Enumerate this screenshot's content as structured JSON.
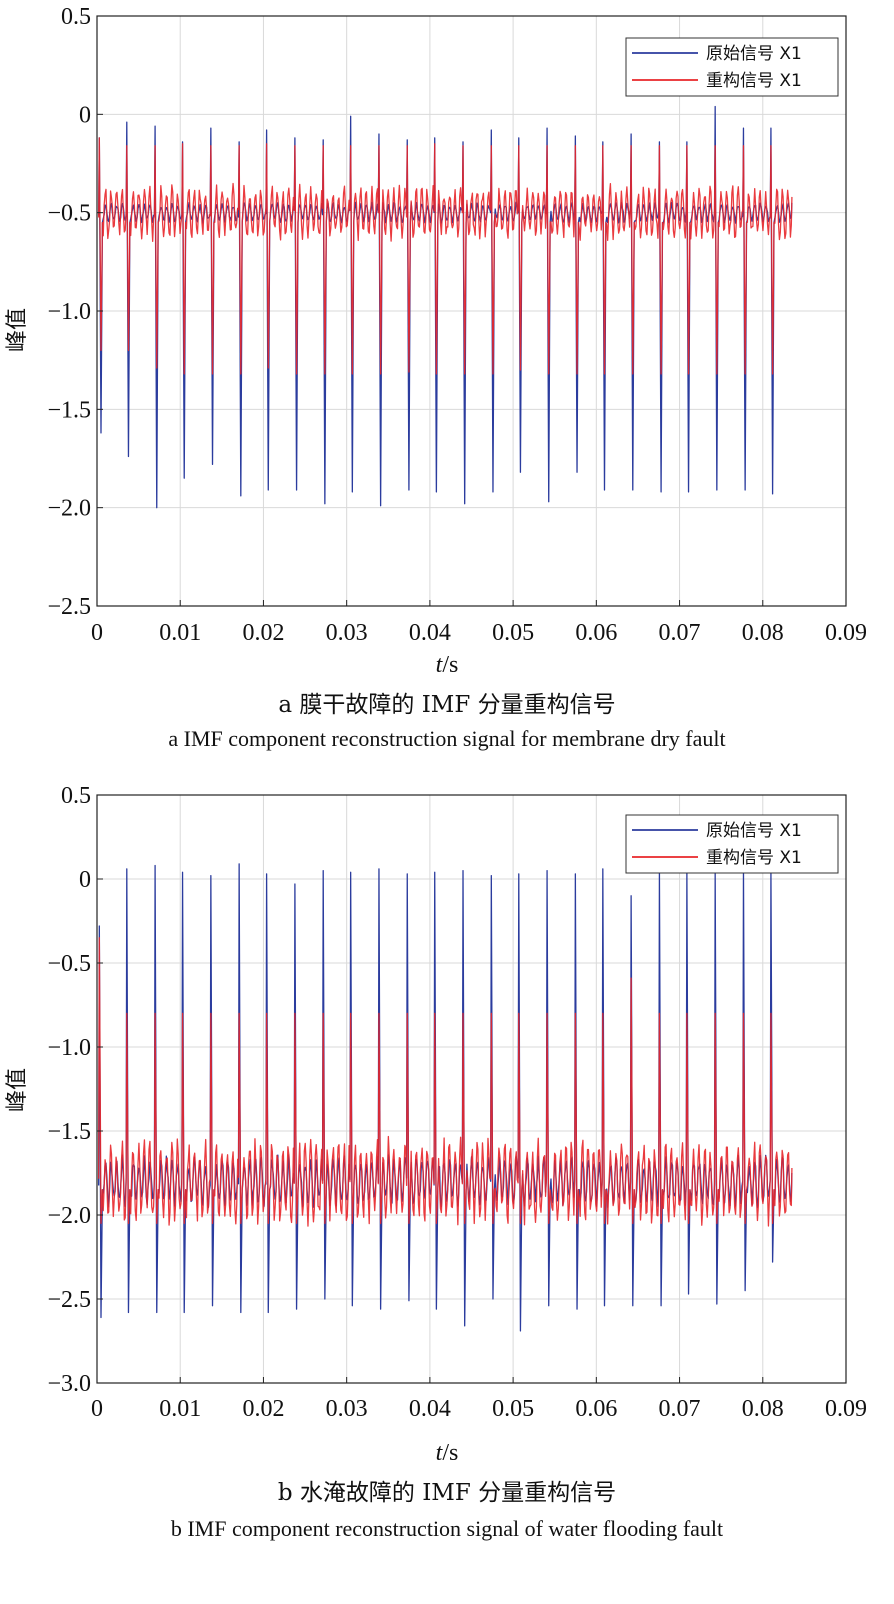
{
  "chart_data": [
    {
      "type": "line",
      "panel_id": "a",
      "xlabel_italic": "t",
      "xlabel_unit": "/s",
      "ylabel": "峰值",
      "xlim": [
        0,
        0.09
      ],
      "ylim": [
        -2.5,
        0.5
      ],
      "xticks": [
        0,
        0.01,
        0.02,
        0.03,
        0.04,
        0.05,
        0.06,
        0.07,
        0.08,
        0.09
      ],
      "xtick_labels": [
        "0",
        "0.01",
        "0.02",
        "0.03",
        "0.04",
        "0.05",
        "0.06",
        "0.07",
        "0.08",
        "0.09"
      ],
      "yticks": [
        0.5,
        0,
        -0.5,
        -1.0,
        -1.5,
        -2.0,
        -2.5
      ],
      "ytick_labels": [
        "0.5",
        "0",
        "−0.5",
        "−1.0",
        "−1.5",
        "−2.0",
        "−2.5"
      ],
      "grid": true,
      "legend_position": "top-right",
      "caption_cn": "a  膜干故障的 IMF 分量重构信号",
      "caption_en": "a  IMF component reconstruction signal for membrane dry fault",
      "series": [
        {
          "name": "原始信号 X1",
          "color": "#2b3c9e",
          "x_end": 0.0835,
          "baseline": -0.5,
          "peak_times": [
            0.0002,
            0.0035,
            0.0069,
            0.0102,
            0.0136,
            0.017,
            0.0203,
            0.0237,
            0.0271,
            0.0304,
            0.0338,
            0.0372,
            0.0405,
            0.0439,
            0.0473,
            0.0506,
            0.054,
            0.0574,
            0.0607,
            0.0641,
            0.0675,
            0.0708,
            0.0742,
            0.0776,
            0.0809
          ],
          "peak_highs": [
            -0.12,
            -0.04,
            -0.06,
            -0.14,
            -0.07,
            -0.14,
            -0.08,
            -0.12,
            -0.13,
            -0.01,
            -0.1,
            -0.13,
            -0.12,
            -0.14,
            -0.08,
            -0.12,
            -0.07,
            -0.11,
            -0.14,
            -0.1,
            -0.14,
            -0.14,
            0.04,
            -0.07,
            -0.07
          ],
          "peak_lows": [
            -1.62,
            -1.74,
            -2.0,
            -1.85,
            -1.78,
            -1.94,
            -1.91,
            -1.91,
            -1.98,
            -1.92,
            -1.99,
            -1.91,
            -1.92,
            -1.98,
            -1.92,
            -1.82,
            -1.97,
            -1.82,
            -1.91,
            -1.91,
            -1.92,
            -1.92,
            -1.91,
            -1.91,
            -1.93
          ]
        },
        {
          "name": "重构信号 X1",
          "color": "#e8262a",
          "x_end": 0.0835,
          "baseline": -0.5,
          "peak_times": [
            0.0002,
            0.0035,
            0.0069,
            0.0102,
            0.0136,
            0.017,
            0.0203,
            0.0237,
            0.0271,
            0.0304,
            0.0338,
            0.0372,
            0.0405,
            0.0439,
            0.0473,
            0.0506,
            0.054,
            0.0574,
            0.0607,
            0.0641,
            0.0675,
            0.0708,
            0.0742,
            0.0776,
            0.0809
          ],
          "peak_highs": [
            -0.12,
            -0.16,
            -0.16,
            -0.15,
            -0.16,
            -0.16,
            -0.15,
            -0.16,
            -0.16,
            -0.16,
            -0.16,
            -0.16,
            -0.15,
            -0.16,
            -0.16,
            -0.16,
            -0.16,
            -0.16,
            -0.16,
            -0.16,
            -0.16,
            -0.16,
            -0.16,
            -0.16,
            -0.16
          ],
          "peak_lows": [
            -1.2,
            -1.2,
            -1.29,
            -1.32,
            -1.32,
            -1.32,
            -1.29,
            -1.32,
            -1.32,
            -1.32,
            -1.32,
            -1.31,
            -1.32,
            -1.32,
            -1.32,
            -1.3,
            -1.32,
            -1.32,
            -1.32,
            -1.32,
            -1.32,
            -1.32,
            -1.32,
            -1.32,
            -1.32
          ]
        }
      ]
    },
    {
      "type": "line",
      "panel_id": "b",
      "xlabel_italic": "t",
      "xlabel_unit": "/s",
      "ylabel": "峰值",
      "xlim": [
        0,
        0.09
      ],
      "ylim": [
        -3.0,
        0.5
      ],
      "xticks": [
        0,
        0.01,
        0.02,
        0.03,
        0.04,
        0.05,
        0.06,
        0.07,
        0.08,
        0.09
      ],
      "xtick_labels": [
        "0",
        "0.01",
        "0.02",
        "0.03",
        "0.04",
        "0.05",
        "0.06",
        "0.07",
        "0.08",
        "0.09"
      ],
      "yticks": [
        0.5,
        0,
        -0.5,
        -1.0,
        -1.5,
        -2.0,
        -2.5,
        -3.0
      ],
      "ytick_labels": [
        "0.5",
        "0",
        "−0.5",
        "−1.0",
        "−1.5",
        "−2.0",
        "−2.5",
        "−3.0"
      ],
      "grid": true,
      "legend_position": "top-right",
      "caption_cn": "b  水淹故障的 IMF 分量重构信号",
      "caption_en": "b  IMF component reconstruction signal of water flooding fault",
      "series": [
        {
          "name": "原始信号 X1",
          "color": "#2b3c9e",
          "x_end": 0.0835,
          "baseline": -1.8,
          "peak_times": [
            0.0002,
            0.0035,
            0.0069,
            0.0102,
            0.0136,
            0.017,
            0.0203,
            0.0237,
            0.0271,
            0.0304,
            0.0338,
            0.0372,
            0.0405,
            0.0439,
            0.0473,
            0.0506,
            0.054,
            0.0574,
            0.0607,
            0.0641,
            0.0675,
            0.0708,
            0.0742,
            0.0776,
            0.0809
          ],
          "peak_highs": [
            -0.28,
            0.06,
            0.08,
            0.04,
            0.02,
            0.09,
            0.03,
            -0.03,
            0.05,
            0.04,
            0.06,
            0.03,
            0.04,
            0.05,
            0.02,
            0.03,
            0.05,
            0.03,
            0.06,
            -0.1,
            0.05,
            0.04,
            0.04,
            0.06,
            0.05
          ],
          "peak_lows": [
            -2.61,
            -2.58,
            -2.58,
            -2.58,
            -2.54,
            -2.58,
            -2.58,
            -2.56,
            -2.5,
            -2.54,
            -2.56,
            -2.51,
            -2.56,
            -2.66,
            -2.5,
            -2.69,
            -2.54,
            -2.56,
            -2.54,
            -2.54,
            -2.54,
            -2.47,
            -2.53,
            -2.45,
            -2.28
          ]
        },
        {
          "name": "重构信号 X1",
          "color": "#e8262a",
          "x_end": 0.0835,
          "baseline": -1.8,
          "peak_times": [
            0.0002,
            0.0035,
            0.0069,
            0.0102,
            0.0136,
            0.017,
            0.0203,
            0.0237,
            0.0271,
            0.0304,
            0.0338,
            0.0372,
            0.0405,
            0.0439,
            0.0473,
            0.0506,
            0.054,
            0.0574,
            0.0607,
            0.0641,
            0.0675,
            0.0708,
            0.0742,
            0.0776,
            0.0809
          ],
          "peak_highs": [
            -0.35,
            -0.8,
            -0.8,
            -0.8,
            -0.8,
            -0.8,
            -0.8,
            -0.8,
            -0.8,
            -0.8,
            -0.8,
            -0.8,
            -0.8,
            -0.8,
            -0.8,
            -0.8,
            -0.8,
            -0.8,
            -0.8,
            -0.59,
            -0.8,
            -0.8,
            -0.8,
            -0.8,
            -0.8
          ],
          "peak_lows": [
            -2.05,
            -2.05,
            -2.05,
            -2.05,
            -2.05,
            -2.05,
            -2.05,
            -2.05,
            -2.05,
            -2.05,
            -2.05,
            -2.05,
            -2.05,
            -2.05,
            -2.05,
            -2.05,
            -2.05,
            -2.05,
            -2.05,
            -2.05,
            -2.05,
            -2.05,
            -2.05,
            -2.05,
            -2.05
          ]
        }
      ]
    }
  ]
}
